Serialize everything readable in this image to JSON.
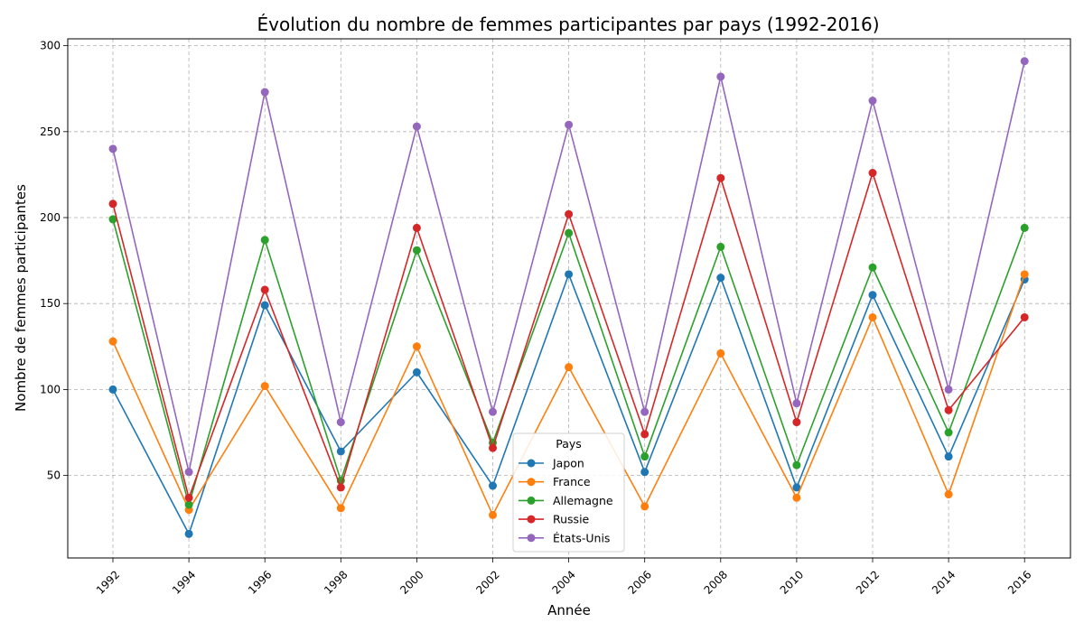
{
  "chart_data": {
    "type": "line",
    "title": "Évolution du nombre de femmes participantes par pays (1992-2016)",
    "xlabel": "Année",
    "ylabel": "Nombre de femmes participantes",
    "x": [
      "1992",
      "1994",
      "1996",
      "1998",
      "2000",
      "2002",
      "2004",
      "2006",
      "2008",
      "2010",
      "2012",
      "2014",
      "2016"
    ],
    "ylim": [
      2,
      304
    ],
    "yticks": [
      50,
      100,
      150,
      200,
      250,
      300
    ],
    "grid": true,
    "legend": {
      "title": "Pays",
      "placement": "bottom-center"
    },
    "series": [
      {
        "name": "Japon",
        "color": "#1f77b4",
        "values": [
          100,
          16,
          149,
          64,
          110,
          44,
          167,
          52,
          165,
          43,
          155,
          61,
          164
        ]
      },
      {
        "name": "France",
        "color": "#ff7f0e",
        "values": [
          128,
          30,
          102,
          31,
          125,
          27,
          113,
          32,
          121,
          37,
          142,
          39,
          167
        ]
      },
      {
        "name": "Allemagne",
        "color": "#2ca02c",
        "values": [
          199,
          33,
          187,
          47,
          181,
          69,
          191,
          61,
          183,
          56,
          171,
          75,
          194
        ]
      },
      {
        "name": "Russie",
        "color": "#d62728",
        "values": [
          208,
          37,
          158,
          43,
          194,
          66,
          202,
          74,
          223,
          81,
          226,
          88,
          142
        ]
      },
      {
        "name": "États-Unis",
        "color": "#9467bd",
        "values": [
          240,
          52,
          273,
          81,
          253,
          87,
          254,
          87,
          282,
          92,
          268,
          100,
          291
        ]
      }
    ]
  }
}
